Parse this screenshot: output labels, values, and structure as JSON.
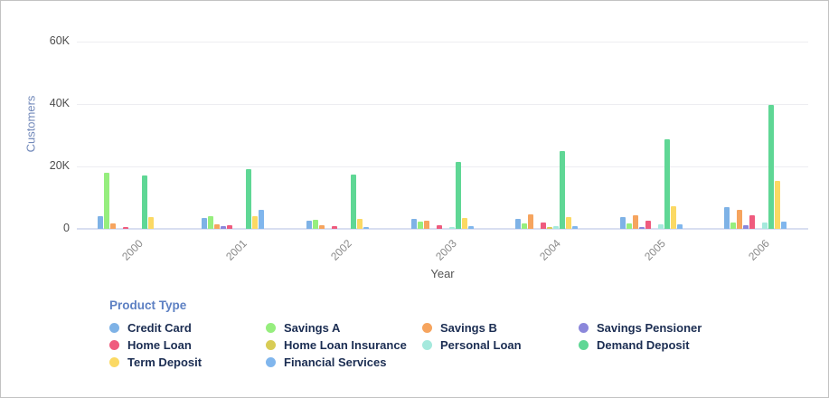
{
  "panel": {
    "background": "#ffffff",
    "border_color": "#c2c2c2"
  },
  "chart": {
    "y_axis_title": "Customers",
    "x_axis_title": "Year",
    "legend_title": "Product Type",
    "axis_title_color": "#7289ba",
    "tick_label_color": "#4e4e4e",
    "year_label_color": "#888888",
    "legend_title_color": "#5d80c3",
    "legend_label_color": "#1b2d52",
    "gridline_color": "#ededf1",
    "baseline_color": "#d9dff1"
  },
  "chart_data": {
    "type": "bar",
    "title": "",
    "xlabel": "Year",
    "ylabel": "Customers",
    "ylim": [
      0,
      67000
    ],
    "grid": true,
    "legend_position": "bottom",
    "legend_title": "Product Type",
    "categories": [
      "2000",
      "2001",
      "2002",
      "2003",
      "2004",
      "2005",
      "2006"
    ],
    "yticks": [
      {
        "value": 0,
        "label": "0"
      },
      {
        "value": 20000,
        "label": "20K"
      },
      {
        "value": 40000,
        "label": "40K"
      },
      {
        "value": 60000,
        "label": "60K"
      }
    ],
    "series": [
      {
        "name": "Credit Card",
        "color": "#7EB2E6",
        "values": [
          4100,
          3400,
          2500,
          3100,
          3200,
          3900,
          7100
        ]
      },
      {
        "name": "Savings A",
        "color": "#96EE7E",
        "values": [
          18000,
          4200,
          3000,
          2400,
          1800,
          1800,
          2000
        ]
      },
      {
        "name": "Savings B",
        "color": "#F6A45E",
        "values": [
          1700,
          1500,
          1300,
          2500,
          4700,
          4400,
          6200
        ]
      },
      {
        "name": "Savings Pensioner",
        "color": "#8B87DB",
        "values": [
          0,
          900,
          0,
          0,
          0,
          600,
          1300
        ]
      },
      {
        "name": "Home Loan",
        "color": "#EF5B7E",
        "values": [
          600,
          1200,
          800,
          1300,
          1900,
          2600,
          4400
        ]
      },
      {
        "name": "Home Loan Insurance",
        "color": "#D8CC55",
        "values": [
          0,
          0,
          0,
          0,
          500,
          0,
          0
        ]
      },
      {
        "name": "Personal Loan",
        "color": "#A5E9DD",
        "values": [
          0,
          0,
          0,
          600,
          1000,
          1500,
          2100
        ]
      },
      {
        "name": "Demand Deposit",
        "color": "#5FD795",
        "values": [
          17200,
          19200,
          17400,
          21500,
          24800,
          28700,
          39600
        ]
      },
      {
        "name": "Term Deposit",
        "color": "#FBD964",
        "values": [
          3700,
          4200,
          3300,
          3600,
          3900,
          7200,
          15400
        ]
      },
      {
        "name": "Financial Services",
        "color": "#80B6ED",
        "values": [
          0,
          6100,
          500,
          800,
          1000,
          1400,
          2200
        ]
      }
    ]
  }
}
